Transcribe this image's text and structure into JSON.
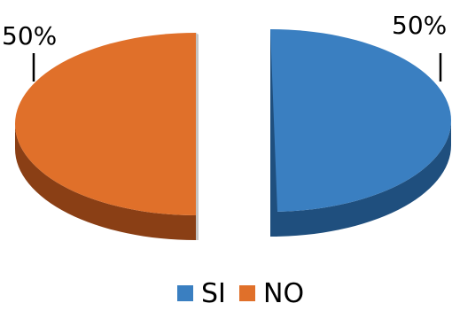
{
  "chart_data": {
    "type": "pie",
    "style": "3d-exploded",
    "title": "",
    "categories": [
      "SI",
      "NO"
    ],
    "values": [
      50,
      50
    ],
    "data_labels": [
      "50%",
      "50%"
    ],
    "colors": [
      "#3a7fc1",
      "#e0702a"
    ],
    "side_colors": [
      "#1f4f7e",
      "#8a3f15"
    ],
    "legend": {
      "position": "bottom",
      "entries": [
        "SI",
        "NO"
      ]
    }
  }
}
